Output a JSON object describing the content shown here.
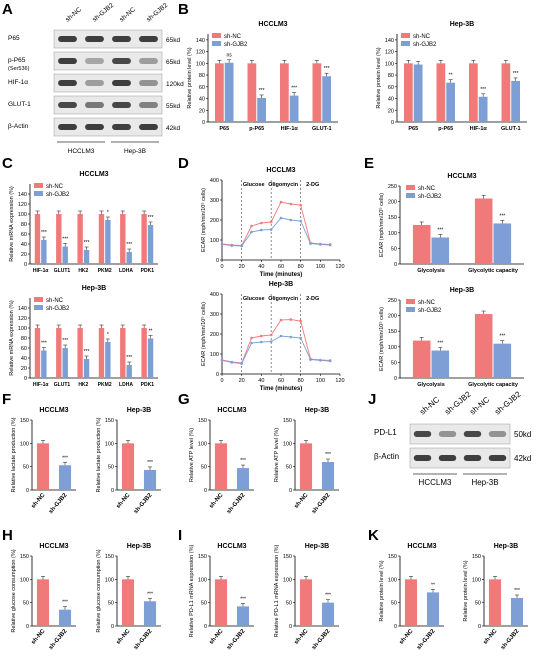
{
  "colors": {
    "nc": "#F07A7A",
    "gjb2": "#7E9ED6",
    "blot_bg": "#E9E9E9",
    "band": "#2B2B2B",
    "grid": "#BBBBBB"
  },
  "legend": {
    "nc": "sh-NC",
    "gjb2": "sh-GJB2"
  },
  "panels": {
    "A": {
      "letter": "A",
      "lanes": [
        "sh-NC",
        "sh-GJB2",
        "sh-NC",
        "sh-GJB2"
      ],
      "groups": [
        "HCCLM3",
        "Hep-3B"
      ],
      "rows": [
        {
          "label": "P65",
          "label2": "",
          "size": "65kd",
          "bands": [
            0.9,
            0.9,
            0.9,
            0.9
          ]
        },
        {
          "label": "p-P65",
          "label2": "(Ser536)",
          "size": "65kd",
          "bands": [
            0.9,
            0.35,
            0.85,
            0.4
          ]
        },
        {
          "label": "HIF-1α",
          "label2": "",
          "size": "120kd",
          "bands": [
            0.9,
            0.4,
            0.9,
            0.45
          ]
        },
        {
          "label": "GLUT-1",
          "label2": "",
          "size": "55kd",
          "bands": [
            0.85,
            0.6,
            0.85,
            0.55
          ]
        },
        {
          "label": "β-Actin",
          "label2": "",
          "size": "42kd",
          "bands": [
            0.9,
            0.9,
            0.9,
            0.9
          ]
        }
      ]
    },
    "B": {
      "letter": "B"
    },
    "C": {
      "letter": "C"
    },
    "D": {
      "letter": "D"
    },
    "E": {
      "letter": "E"
    },
    "F": {
      "letter": "F"
    },
    "G": {
      "letter": "G"
    },
    "H": {
      "letter": "H"
    },
    "I": {
      "letter": "I"
    },
    "J": {
      "letter": "J",
      "lanes": [
        "sh-NC",
        "sh-GJB2",
        "sh-NC",
        "sh-GJB2"
      ],
      "groups": [
        "HCCLM3",
        "Hep-3B"
      ],
      "rows": [
        {
          "label": "PD-L1",
          "size": "50kd",
          "bands": [
            0.85,
            0.45,
            0.85,
            0.45
          ]
        },
        {
          "label": "β-Actin",
          "size": "42kd",
          "bands": [
            0.9,
            0.9,
            0.9,
            0.9
          ]
        }
      ]
    },
    "K": {
      "letter": "K"
    }
  },
  "chart_data": [
    {
      "id": "B1",
      "type": "bar",
      "title": "HCCLM3",
      "ylabel": "Relative protein level (%)",
      "ylim": [
        0,
        150
      ],
      "yticks": [
        0,
        20,
        40,
        60,
        80,
        100,
        120,
        140
      ],
      "categories": [
        "P65",
        "p-P65",
        "HIF-1α",
        "GLUT-1"
      ],
      "series": [
        {
          "name": "sh-NC",
          "values": [
            100,
            100,
            100,
            100
          ]
        },
        {
          "name": "sh-GJB2",
          "values": [
            101,
            41,
            45,
            78
          ]
        }
      ],
      "significance": [
        "ns",
        "***",
        "***",
        "***"
      ]
    },
    {
      "id": "B2",
      "type": "bar",
      "title": "Hep-3B",
      "ylabel": "Relative protein level (%)",
      "ylim": [
        0,
        150
      ],
      "yticks": [
        0,
        20,
        40,
        60,
        80,
        100,
        120,
        140
      ],
      "categories": [
        "P65",
        "p-P65",
        "HIF-1α",
        "GLUT-1"
      ],
      "series": [
        {
          "name": "sh-NC",
          "values": [
            100,
            100,
            100,
            100
          ]
        },
        {
          "name": "sh-GJB2",
          "values": [
            98,
            67,
            43,
            70
          ]
        }
      ],
      "significance": [
        "",
        "**",
        "***",
        "***"
      ]
    },
    {
      "id": "C1",
      "type": "bar",
      "title": "HCCLM3",
      "ylabel": "Relative mRNA expression (%)",
      "ylim": [
        0,
        160
      ],
      "yticks": [
        0,
        20,
        40,
        60,
        80,
        100,
        120,
        140
      ],
      "categories": [
        "HIF-1α",
        "GLUT1",
        "HK2",
        "PKM2",
        "LDHA",
        "PDK1"
      ],
      "series": [
        {
          "name": "sh-NC",
          "values": [
            100,
            100,
            100,
            100,
            100,
            100
          ]
        },
        {
          "name": "sh-GJB2",
          "values": [
            48,
            35,
            28,
            88,
            24,
            78
          ]
        }
      ],
      "significance": [
        "***",
        "***",
        "***",
        "*",
        "***",
        "***"
      ]
    },
    {
      "id": "C2",
      "type": "bar",
      "title": "Hep-3B",
      "ylabel": "Relative mRNA expression (%)",
      "ylim": [
        0,
        160
      ],
      "yticks": [
        0,
        20,
        40,
        60,
        80,
        100,
        120,
        140
      ],
      "categories": [
        "HIF-1α",
        "GLUT1",
        "HK2",
        "PKM2",
        "LDHA",
        "PDK1"
      ],
      "series": [
        {
          "name": "sh-NC",
          "values": [
            100,
            100,
            100,
            100,
            100,
            100
          ]
        },
        {
          "name": "sh-GJB2",
          "values": [
            55,
            60,
            38,
            72,
            26,
            79
          ]
        }
      ],
      "significance": [
        "***",
        "***",
        "***",
        "*",
        "***",
        "**"
      ]
    },
    {
      "id": "D1",
      "type": "line",
      "title": "HCCLM3",
      "ylabel": "ECAR (mph/min/10⁵ cells)",
      "xlabel": "Time (minutes)",
      "xlim": [
        0,
        120
      ],
      "ylim": [
        0,
        400
      ],
      "xticks": [
        0,
        20,
        40,
        60,
        80,
        100,
        120
      ],
      "yticks": [
        0,
        100,
        200,
        300,
        400
      ],
      "markers": [
        {
          "x": 20,
          "label": "Glucose"
        },
        {
          "x": 50,
          "label": "Oligomycin"
        },
        {
          "x": 80,
          "label": "2-DG"
        }
      ],
      "x": [
        0,
        10,
        20,
        30,
        40,
        50,
        60,
        70,
        80,
        90,
        100,
        110
      ],
      "series": [
        {
          "name": "sh-NC",
          "values": [
            80,
            75,
            72,
            170,
            185,
            190,
            290,
            280,
            275,
            85,
            80,
            78
          ]
        },
        {
          "name": "sh-GJB2",
          "values": [
            78,
            72,
            70,
            140,
            150,
            152,
            210,
            200,
            195,
            82,
            78,
            75
          ]
        }
      ]
    },
    {
      "id": "D2",
      "type": "line",
      "title": "Hep-3B",
      "ylabel": "ECAR (mph/min/10⁵ cells)",
      "xlabel": "Time (minutes)",
      "xlim": [
        0,
        120
      ],
      "ylim": [
        0,
        400
      ],
      "xticks": [
        0,
        20,
        40,
        60,
        80,
        100,
        120
      ],
      "yticks": [
        0,
        100,
        200,
        300,
        400
      ],
      "markers": [
        {
          "x": 20,
          "label": "Glucose"
        },
        {
          "x": 50,
          "label": "Oligomycin"
        },
        {
          "x": 80,
          "label": "2-DG"
        }
      ],
      "x": [
        0,
        10,
        20,
        30,
        40,
        50,
        60,
        70,
        80,
        90,
        100,
        110
      ],
      "series": [
        {
          "name": "sh-NC",
          "values": [
            70,
            60,
            55,
            180,
            190,
            195,
            270,
            272,
            265,
            75,
            70,
            68
          ]
        },
        {
          "name": "sh-GJB2",
          "values": [
            68,
            58,
            52,
            155,
            160,
            162,
            190,
            185,
            180,
            72,
            68,
            65
          ]
        }
      ]
    },
    {
      "id": "E1",
      "type": "bar",
      "title": "HCCLM3",
      "ylabel": "ECAR (mph/min/10⁵ cells)",
      "ylim": [
        0,
        250
      ],
      "yticks": [
        0,
        50,
        100,
        150,
        200,
        250
      ],
      "categories": [
        "Glycolysis",
        "Glycolytic capacity"
      ],
      "series": [
        {
          "name": "sh-NC",
          "values": [
            125,
            210
          ]
        },
        {
          "name": "sh-GJB2",
          "values": [
            85,
            130
          ]
        }
      ],
      "significance": [
        "***",
        "***"
      ]
    },
    {
      "id": "E2",
      "type": "bar",
      "title": "Hep-3B",
      "ylabel": "ECAR (mph/min/10⁵ cells)",
      "ylim": [
        0,
        250
      ],
      "yticks": [
        0,
        50,
        100,
        150,
        200,
        250
      ],
      "categories": [
        "Glycolysis",
        "Glycolytic capacity"
      ],
      "series": [
        {
          "name": "sh-NC",
          "values": [
            120,
            205
          ]
        },
        {
          "name": "sh-GJB2",
          "values": [
            88,
            110
          ]
        }
      ],
      "significance": [
        "***",
        "***"
      ]
    },
    {
      "id": "F1",
      "type": "bar",
      "title": "HCCLM3",
      "ylabel": "Relative lactate production (%)",
      "ylim": [
        0,
        150
      ],
      "yticks": [
        0,
        50,
        100,
        150
      ],
      "categories": [
        "sh-NC",
        "sh-GJB2"
      ],
      "values": [
        100,
        53
      ],
      "significance": [
        "",
        "***"
      ]
    },
    {
      "id": "F2",
      "type": "bar",
      "title": "Hep-3B",
      "ylabel": "Relative lactate production (%)",
      "ylim": [
        0,
        150
      ],
      "yticks": [
        0,
        50,
        100,
        150
      ],
      "categories": [
        "sh-NC",
        "sh-GJB2"
      ],
      "values": [
        100,
        43
      ],
      "significance": [
        "",
        "***"
      ]
    },
    {
      "id": "G1",
      "type": "bar",
      "title": "HCCLM3",
      "ylabel": "Relative ATP level (%)",
      "ylim": [
        0,
        150
      ],
      "yticks": [
        0,
        50,
        100,
        150
      ],
      "categories": [
        "sh-NC",
        "sh-GJB2"
      ],
      "values": [
        100,
        47
      ],
      "significance": [
        "",
        "***"
      ]
    },
    {
      "id": "G2",
      "type": "bar",
      "title": "Hep-3B",
      "ylabel": "Relative ATP level (%)",
      "ylim": [
        0,
        150
      ],
      "yticks": [
        0,
        50,
        100,
        150
      ],
      "categories": [
        "sh-NC",
        "sh-GJB2"
      ],
      "values": [
        100,
        60
      ],
      "significance": [
        "",
        "***"
      ]
    },
    {
      "id": "H1",
      "type": "bar",
      "title": "HCCLM3",
      "ylabel": "Relative glucose consumption (%)",
      "ylim": [
        0,
        150
      ],
      "yticks": [
        0,
        50,
        100,
        150
      ],
      "categories": [
        "sh-NC",
        "sh-GJB2"
      ],
      "values": [
        100,
        35
      ],
      "significance": [
        "",
        "***"
      ]
    },
    {
      "id": "H2",
      "type": "bar",
      "title": "Hep-3B",
      "ylabel": "Relative glucose consumption (%)",
      "ylim": [
        0,
        150
      ],
      "yticks": [
        0,
        50,
        100,
        150
      ],
      "categories": [
        "sh-NC",
        "sh-GJB2"
      ],
      "values": [
        100,
        53
      ],
      "significance": [
        "",
        "***"
      ]
    },
    {
      "id": "I1",
      "type": "bar",
      "title": "HCCLM3",
      "ylabel": "Relative PD-L1 mRNA expression (%)",
      "ylim": [
        0,
        150
      ],
      "yticks": [
        0,
        50,
        100,
        150
      ],
      "categories": [
        "sh-NC",
        "sh-GJB2"
      ],
      "values": [
        100,
        42
      ],
      "significance": [
        "",
        "***"
      ]
    },
    {
      "id": "I2",
      "type": "bar",
      "title": "Hep-3B",
      "ylabel": "Relative PD-L1 mRNA expression (%)",
      "ylim": [
        0,
        150
      ],
      "yticks": [
        0,
        50,
        100,
        150
      ],
      "categories": [
        "sh-NC",
        "sh-GJB2"
      ],
      "values": [
        100,
        50
      ],
      "significance": [
        "",
        "***"
      ]
    },
    {
      "id": "K1",
      "type": "bar",
      "title": "HCCLM3",
      "ylabel": "Relative protein level (%)",
      "ylim": [
        0,
        150
      ],
      "yticks": [
        0,
        50,
        100,
        150
      ],
      "categories": [
        "sh-NC",
        "sh-GJB2"
      ],
      "values": [
        100,
        72
      ],
      "significance": [
        "",
        "**"
      ]
    },
    {
      "id": "K2",
      "type": "bar",
      "title": "Hep-3B",
      "ylabel": "Relative protein level (%)",
      "ylim": [
        0,
        150
      ],
      "yticks": [
        0,
        50,
        100,
        150
      ],
      "categories": [
        "sh-NC",
        "sh-GJB2"
      ],
      "values": [
        100,
        60
      ],
      "significance": [
        "",
        "***"
      ]
    }
  ]
}
